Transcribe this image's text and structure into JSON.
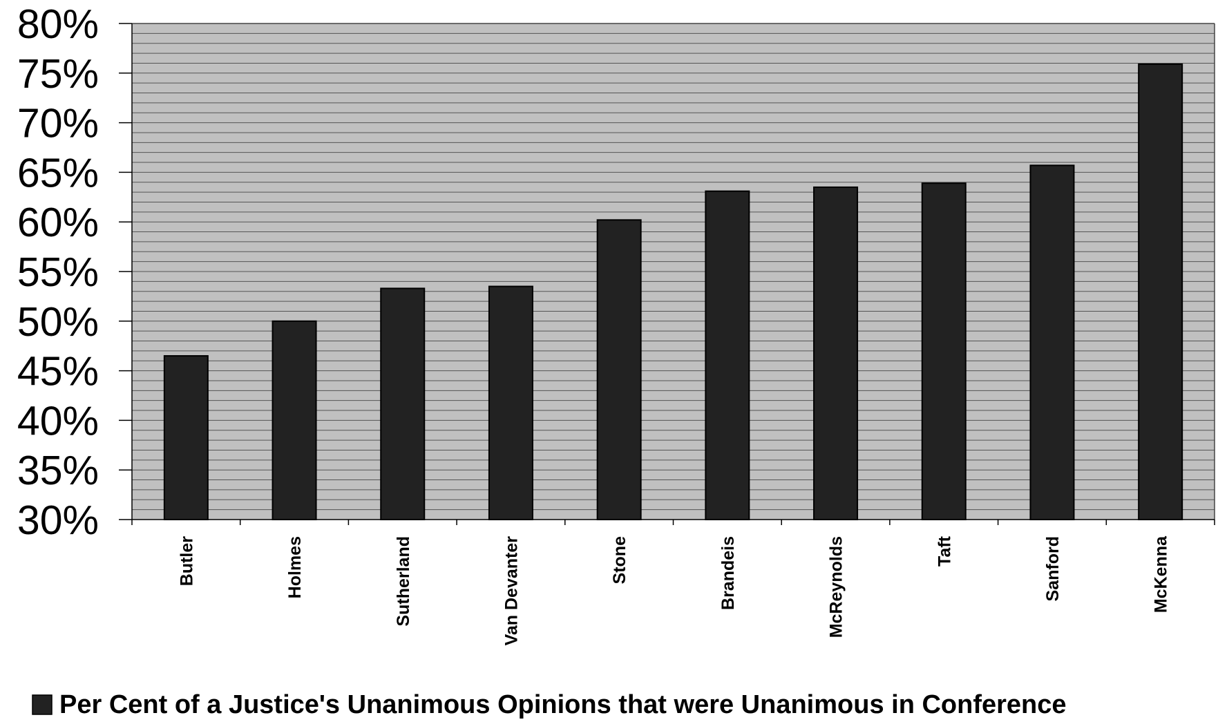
{
  "chart_data": {
    "type": "bar",
    "categories": [
      "Butler",
      "Holmes",
      "Sutherland",
      "Van Devanter",
      "Stone",
      "Brandeis",
      "McReynolds",
      "Taft",
      "Sanford",
      "McKenna"
    ],
    "series": [
      {
        "name": "Per Cent of a Justice's Unanimous Opinions that were Unanimous in Conference",
        "values": [
          46.5,
          50.0,
          53.3,
          53.5,
          60.2,
          63.1,
          63.5,
          63.9,
          65.7,
          75.9
        ]
      }
    ],
    "ylim": [
      30,
      80
    ],
    "yticks": [
      "30%",
      "35%",
      "40%",
      "45%",
      "50%",
      "55%",
      "60%",
      "65%",
      "70%",
      "75%",
      "80%"
    ],
    "xlabel": "",
    "ylabel": "",
    "grid": true,
    "legend_position": "bottom",
    "colors": {
      "bar": "#222222",
      "plot_background": "#c0c0c0",
      "grid": "#555555"
    }
  }
}
